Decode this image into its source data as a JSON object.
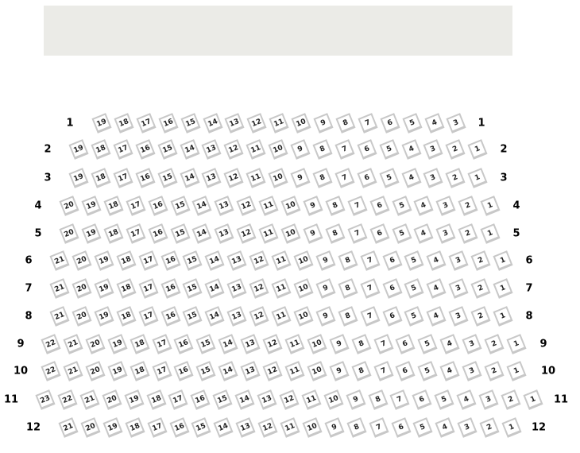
{
  "stage": {
    "color": "#ebebe7"
  },
  "seat_border_color": "#c8c8c8",
  "rows": [
    {
      "label": "1",
      "seats": [
        19,
        18,
        17,
        16,
        15,
        14,
        13,
        12,
        11,
        10,
        9,
        8,
        7,
        6,
        5,
        4,
        3
      ]
    },
    {
      "label": "2",
      "seats": [
        19,
        18,
        17,
        16,
        15,
        14,
        13,
        12,
        11,
        10,
        9,
        8,
        7,
        6,
        5,
        4,
        3,
        2,
        1
      ]
    },
    {
      "label": "3",
      "seats": [
        19,
        18,
        17,
        16,
        15,
        14,
        13,
        12,
        11,
        10,
        9,
        8,
        7,
        6,
        5,
        4,
        3,
        2,
        1
      ]
    },
    {
      "label": "4",
      "seats": [
        20,
        19,
        18,
        17,
        16,
        15,
        14,
        13,
        12,
        11,
        10,
        9,
        8,
        7,
        6,
        5,
        4,
        3,
        2,
        1
      ]
    },
    {
      "label": "5",
      "seats": [
        20,
        19,
        18,
        17,
        16,
        15,
        14,
        13,
        12,
        11,
        10,
        9,
        8,
        7,
        6,
        5,
        4,
        3,
        2,
        1
      ]
    },
    {
      "label": "6",
      "seats": [
        21,
        20,
        19,
        18,
        17,
        16,
        15,
        14,
        13,
        12,
        11,
        10,
        9,
        8,
        7,
        6,
        5,
        4,
        3,
        2,
        1
      ]
    },
    {
      "label": "7",
      "seats": [
        21,
        20,
        19,
        18,
        17,
        16,
        15,
        14,
        13,
        12,
        11,
        10,
        9,
        8,
        7,
        6,
        5,
        4,
        3,
        2,
        1
      ]
    },
    {
      "label": "8",
      "seats": [
        21,
        20,
        19,
        18,
        17,
        16,
        15,
        14,
        13,
        12,
        11,
        10,
        9,
        8,
        7,
        6,
        5,
        4,
        3,
        2,
        1
      ]
    },
    {
      "label": "9",
      "seats": [
        22,
        21,
        20,
        19,
        18,
        17,
        16,
        15,
        14,
        13,
        12,
        11,
        10,
        9,
        8,
        7,
        6,
        5,
        4,
        3,
        2,
        1
      ]
    },
    {
      "label": "10",
      "seats": [
        22,
        21,
        20,
        19,
        18,
        17,
        16,
        15,
        14,
        13,
        12,
        11,
        10,
        9,
        8,
        7,
        6,
        5,
        4,
        3,
        2,
        1
      ]
    },
    {
      "label": "11",
      "seats": [
        23,
        22,
        21,
        20,
        19,
        18,
        17,
        16,
        15,
        14,
        13,
        12,
        11,
        10,
        9,
        8,
        7,
        6,
        5,
        4,
        3,
        2,
        1
      ]
    },
    {
      "label": "12",
      "seats": [
        21,
        20,
        19,
        18,
        17,
        16,
        15,
        14,
        13,
        12,
        11,
        10,
        9,
        8,
        7,
        6,
        5,
        4,
        3,
        2,
        1
      ]
    }
  ]
}
